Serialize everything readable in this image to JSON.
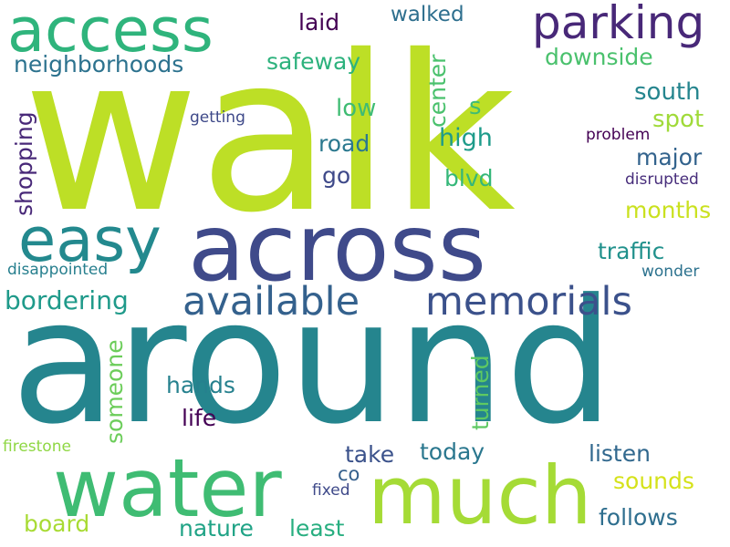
{
  "words": [
    {
      "text": "walk",
      "color": "#bddf26",
      "rotate": false
    },
    {
      "text": "around",
      "color": "#25858e",
      "rotate": false
    },
    {
      "text": "across",
      "color": "#3f4a8a",
      "rotate": false
    },
    {
      "text": "water",
      "color": "#3fbc73",
      "rotate": false
    },
    {
      "text": "much",
      "color": "#a5db36",
      "rotate": false
    },
    {
      "text": "access",
      "color": "#2fb47c",
      "rotate": false
    },
    {
      "text": "easy",
      "color": "#23898e",
      "rotate": false
    },
    {
      "text": "available",
      "color": "#34618d",
      "rotate": false
    },
    {
      "text": "memorials",
      "color": "#3b518b",
      "rotate": false
    },
    {
      "text": "parking",
      "color": "#482878",
      "rotate": false
    },
    {
      "text": "bordering",
      "color": "#1f9a8a",
      "rotate": false
    },
    {
      "text": "neighborhoods",
      "color": "#2c728e",
      "rotate": false
    },
    {
      "text": "safeway",
      "color": "#2db27d",
      "rotate": false
    },
    {
      "text": "laid",
      "color": "#440154",
      "rotate": false
    },
    {
      "text": "walked",
      "color": "#2e6f8e",
      "rotate": false
    },
    {
      "text": "downside",
      "color": "#4ac16d",
      "rotate": false
    },
    {
      "text": "center",
      "color": "#4ac16d",
      "rotate": true
    },
    {
      "text": "shopping",
      "color": "#482878",
      "rotate": true
    },
    {
      "text": "getting",
      "color": "#3e4989",
      "rotate": false
    },
    {
      "text": "low",
      "color": "#3fbc73",
      "rotate": false
    },
    {
      "text": "s",
      "color": "#3fbc73",
      "rotate": false
    },
    {
      "text": "south",
      "color": "#25858e",
      "rotate": false
    },
    {
      "text": "spot",
      "color": "#a0da39",
      "rotate": false
    },
    {
      "text": "high",
      "color": "#1e9b8a",
      "rotate": false
    },
    {
      "text": "road",
      "color": "#2a788e",
      "rotate": false
    },
    {
      "text": "problem",
      "color": "#440154",
      "rotate": false
    },
    {
      "text": "major",
      "color": "#33638d",
      "rotate": false
    },
    {
      "text": "go",
      "color": "#3e4989",
      "rotate": false
    },
    {
      "text": "blvd",
      "color": "#35b779",
      "rotate": false
    },
    {
      "text": "disrupted",
      "color": "#472d7b",
      "rotate": false
    },
    {
      "text": "months",
      "color": "#cae11f",
      "rotate": false
    },
    {
      "text": "traffic",
      "color": "#21918c",
      "rotate": false
    },
    {
      "text": "disappointed",
      "color": "#277f8e",
      "rotate": false
    },
    {
      "text": "wonder",
      "color": "#2c728e",
      "rotate": false
    },
    {
      "text": "someone",
      "color": "#6ccd5a",
      "rotate": true
    },
    {
      "text": "turned",
      "color": "#5ec962",
      "rotate": true
    },
    {
      "text": "hands",
      "color": "#26818e",
      "rotate": false
    },
    {
      "text": "life",
      "color": "#440154",
      "rotate": false
    },
    {
      "text": "take",
      "color": "#3b528b",
      "rotate": false
    },
    {
      "text": "today",
      "color": "#2a778e",
      "rotate": false
    },
    {
      "text": "listen",
      "color": "#31688e",
      "rotate": false
    },
    {
      "text": "firestone",
      "color": "#8fd744",
      "rotate": false
    },
    {
      "text": "co",
      "color": "#35608d",
      "rotate": false
    },
    {
      "text": "fixed",
      "color": "#3e4989",
      "rotate": false
    },
    {
      "text": "sounds",
      "color": "#d5e21a",
      "rotate": false
    },
    {
      "text": "board",
      "color": "#a8db34",
      "rotate": false
    },
    {
      "text": "nature",
      "color": "#20a386",
      "rotate": false
    },
    {
      "text": "least",
      "color": "#28ae80",
      "rotate": false
    },
    {
      "text": "follows",
      "color": "#2e6e8e",
      "rotate": false
    }
  ]
}
